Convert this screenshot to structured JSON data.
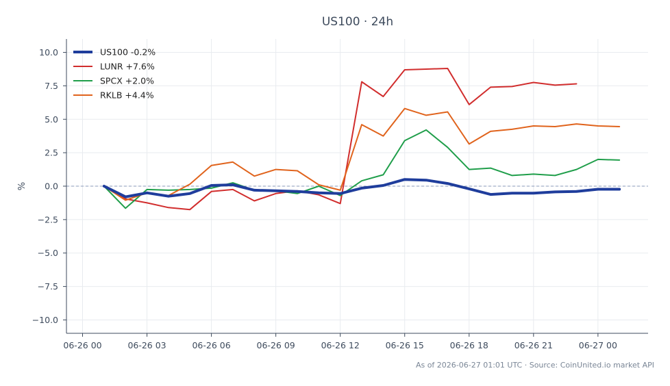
{
  "chart_data": {
    "type": "line",
    "title": "US100 · 24h",
    "xlabel": "",
    "ylabel": "%",
    "ylim": [
      -11,
      11
    ],
    "xlim": [
      "2026-06-25 23:15",
      "2026-06-27 02:20"
    ],
    "grid": true,
    "legend_position": "top-left",
    "zero_line": true,
    "x_ticks": [
      "06-26 00",
      "06-26 03",
      "06-26 06",
      "06-26 09",
      "06-26 12",
      "06-26 15",
      "06-26 18",
      "06-26 21",
      "06-27 00"
    ],
    "y_ticks": [
      "−10.0",
      "−7.5",
      "−5.0",
      "−2.5",
      "0.0",
      "2.5",
      "5.0",
      "7.5",
      "10.0"
    ],
    "x": [
      "2026-06-26 01:00",
      "2026-06-26 02:00",
      "2026-06-26 03:00",
      "2026-06-26 04:00",
      "2026-06-26 05:00",
      "2026-06-26 06:00",
      "2026-06-26 07:00",
      "2026-06-26 08:00",
      "2026-06-26 09:00",
      "2026-06-26 10:00",
      "2026-06-26 11:00",
      "2026-06-26 12:00",
      "2026-06-26 13:00",
      "2026-06-26 14:00",
      "2026-06-26 15:00",
      "2026-06-26 16:00",
      "2026-06-26 17:00",
      "2026-06-26 18:00",
      "2026-06-26 19:00",
      "2026-06-26 20:00",
      "2026-06-26 21:00",
      "2026-06-26 22:00",
      "2026-06-26 23:00",
      "2026-06-27 00:00",
      "2026-06-27 01:00"
    ],
    "series": [
      {
        "name": "US100 -0.2%",
        "color": "#1f3d9c",
        "width": 4,
        "values": [
          0.0,
          -0.8,
          -0.5,
          -0.75,
          -0.55,
          0.05,
          0.1,
          -0.3,
          -0.35,
          -0.4,
          -0.5,
          -0.55,
          -0.15,
          0.05,
          0.5,
          0.45,
          0.2,
          -0.2,
          -0.62,
          -0.52,
          -0.52,
          -0.43,
          -0.4,
          -0.23,
          -0.23
        ]
      },
      {
        "name": "LUNR +7.6%",
        "color": "#d12d2d",
        "width": 2,
        "values": [
          0.0,
          -0.95,
          -1.25,
          -1.6,
          -1.75,
          -0.4,
          -0.25,
          -1.1,
          -0.55,
          -0.35,
          -0.65,
          -1.3,
          7.8,
          6.7,
          8.7,
          8.75,
          8.8,
          6.1,
          7.4,
          7.45,
          7.75,
          7.55,
          7.65,
          null,
          null
        ]
      },
      {
        "name": "SPCX +2.0%",
        "color": "#1f9e4a",
        "width": 2,
        "values": [
          0.0,
          -1.65,
          -0.25,
          -0.3,
          -0.25,
          -0.15,
          0.25,
          -0.3,
          -0.35,
          -0.55,
          0.0,
          -0.7,
          0.4,
          0.85,
          3.4,
          4.2,
          2.9,
          1.25,
          1.35,
          0.8,
          0.9,
          0.8,
          1.25,
          2.0,
          1.95
        ]
      },
      {
        "name": "RKLB +4.4%",
        "color": "#e0631c",
        "width": 2,
        "values": [
          0.0,
          -1.05,
          -0.5,
          -0.7,
          0.15,
          1.55,
          1.8,
          0.75,
          1.25,
          1.15,
          0.1,
          -0.3,
          4.6,
          3.75,
          5.8,
          5.3,
          5.55,
          3.15,
          4.1,
          4.25,
          4.5,
          4.45,
          4.65,
          4.5,
          4.45
        ]
      }
    ]
  },
  "footer": "As of 2026-06-27 01:01 UTC · Source: CoinUnited.io market API"
}
